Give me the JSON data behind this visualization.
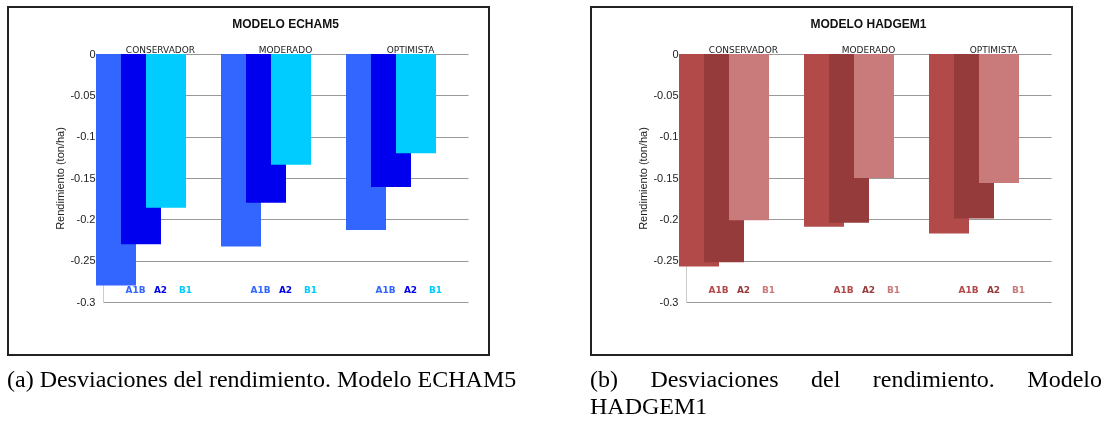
{
  "chart_data": [
    {
      "type": "bar",
      "title": "MODELO ECHAM5",
      "ylabel": "Rendimiento (ton/ha)",
      "categories": [
        "CONSERVADOR",
        "MODERADO",
        "OPTIMISTA"
      ],
      "series": [
        {
          "name": "A1B",
          "color": "#3366ff",
          "values": [
            -0.28,
            -0.233,
            -0.213
          ]
        },
        {
          "name": "A2",
          "color": "#0000ee",
          "values": [
            -0.23,
            -0.18,
            -0.161
          ]
        },
        {
          "name": "B1",
          "color": "#00ccff",
          "values": [
            -0.186,
            -0.134,
            -0.12
          ]
        }
      ],
      "ylim": [
        -0.3,
        0
      ],
      "yticks": [
        0,
        -0.05,
        -0.1,
        -0.15,
        -0.2,
        -0.25,
        -0.3
      ],
      "grid": "y",
      "annotations": [
        "(a) Desviaciones del rendimiento. Modelo ECHAM5"
      ]
    },
    {
      "type": "bar",
      "title": "MODELO HADGEM1",
      "ylabel": "Rendimiento (ton/ha)",
      "categories": [
        "CONSERVADOR",
        "MODERADO",
        "OPTIMISTA"
      ],
      "series": [
        {
          "name": "A1B",
          "color": "#b24a4a",
          "values": [
            -0.257,
            -0.209,
            -0.217
          ]
        },
        {
          "name": "A2",
          "color": "#963b3b",
          "values": [
            -0.252,
            -0.204,
            -0.199
          ]
        },
        {
          "name": "B1",
          "color": "#c97b7b",
          "values": [
            -0.201,
            -0.15,
            -0.156
          ]
        }
      ],
      "ylim": [
        -0.3,
        0
      ],
      "yticks": [
        0,
        -0.05,
        -0.1,
        -0.15,
        -0.2,
        -0.25,
        -0.3
      ],
      "grid": "y",
      "annotations": [
        "(b) Desviaciones del rendimiento. Modelo HADGEM1"
      ]
    }
  ]
}
